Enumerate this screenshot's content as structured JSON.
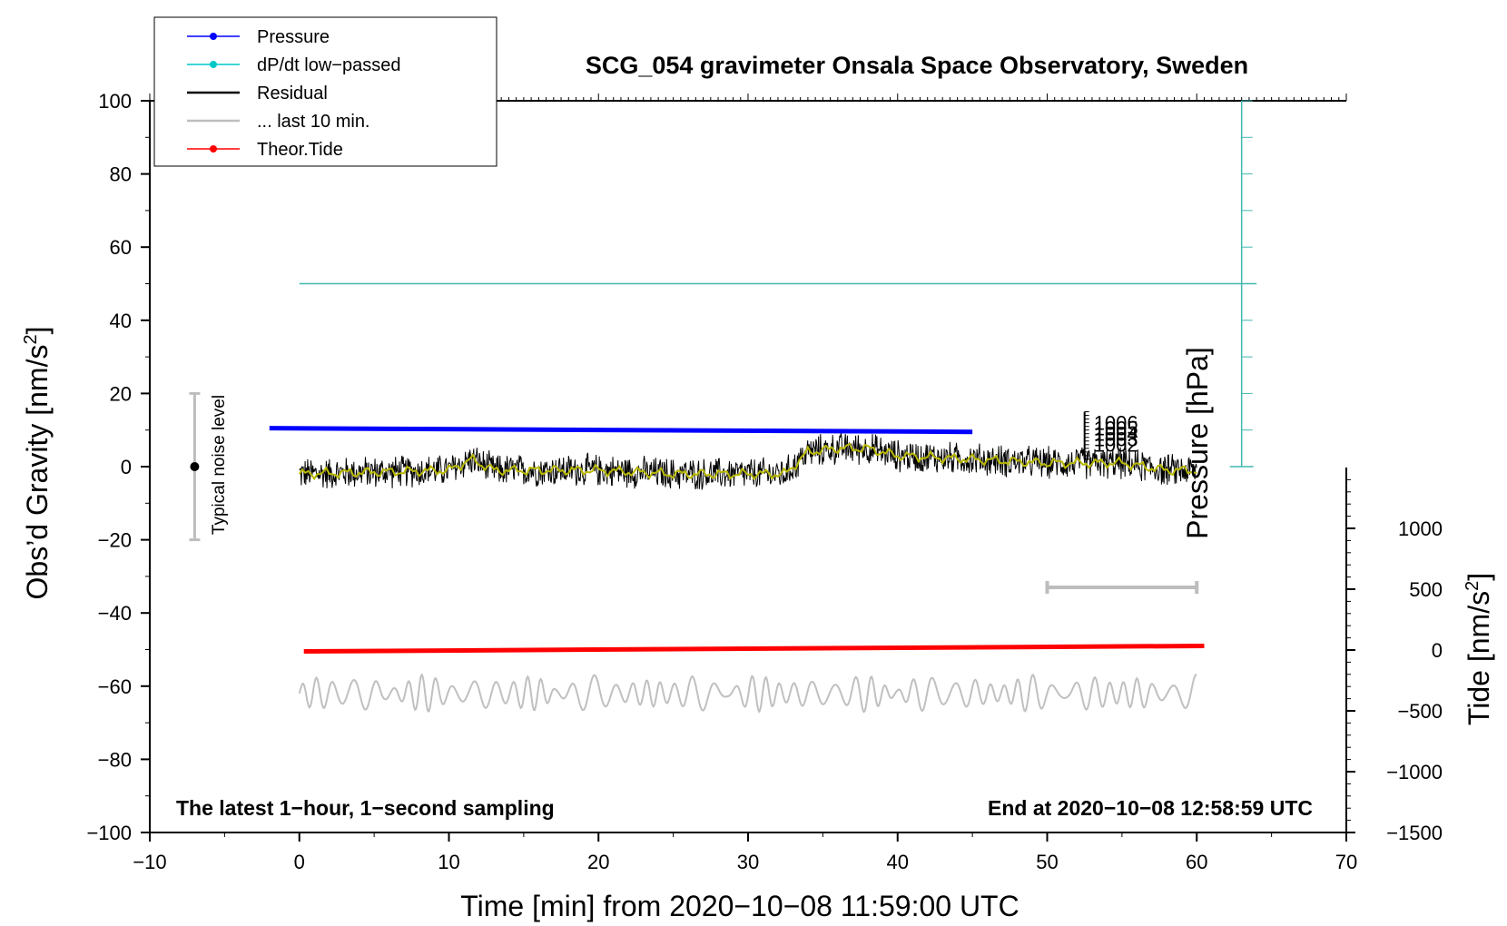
{
  "chart_data": {
    "type": "line",
    "title": "SCG_054 gravimeter Onsala Space Observatory, Sweden",
    "xlabel": "Time [min] from 2020−10−08 11:59:00 UTC",
    "ylabel": "Obs’d Gravity [nm/s",
    "ylabel_sup": "2",
    "ylabel_close": "]",
    "y2label": "Tide [nm/s",
    "y2label_sup": "2",
    "y2label_close": "]",
    "pressure_label": "Pressure [hPa]",
    "xlim": [
      -10,
      70
    ],
    "ylim": [
      -100,
      100
    ],
    "y2lim": [
      -1500,
      1500
    ],
    "x_ticks": [
      -10,
      0,
      10,
      20,
      30,
      40,
      50,
      60,
      70
    ],
    "x_tick_labels": [
      "−10",
      "0",
      "10",
      "20",
      "30",
      "40",
      "50",
      "60",
      "70"
    ],
    "y_ticks": [
      -100,
      -80,
      -60,
      -40,
      -20,
      0,
      20,
      40,
      60,
      80,
      100
    ],
    "y_tick_labels": [
      "−100",
      "−80",
      "−60",
      "−40",
      "−20",
      "0",
      "20",
      "40",
      "60",
      "80",
      "100"
    ],
    "y2_ticks": [
      -1500,
      -1000,
      -500,
      0,
      500,
      1000
    ],
    "y2_tick_labels": [
      "−1500",
      "−1000",
      "−500",
      "0",
      "500",
      "1000"
    ],
    "legend": {
      "position": "top-left",
      "entries": [
        {
          "label": "Pressure",
          "color": "#0000ff",
          "marker": true
        },
        {
          "label": "dP/dt low−passed",
          "color": "#00c8c8",
          "marker": true
        },
        {
          "label": "Residual",
          "color": "#000000",
          "marker": false
        },
        {
          "label": "... last 10 min.",
          "color": "#bdbdbd",
          "marker": false
        },
        {
          "label": "Theor.Tide",
          "color": "#ff0000",
          "marker": true
        }
      ]
    },
    "notes": {
      "left": "The latest 1−hour, 1−second sampling",
      "right": "End at 2020−10−08 12:58:59 UTC",
      "noise": "Typical noise level"
    },
    "noise_bar": {
      "x": -7,
      "low": -20,
      "high": 20,
      "center": 0
    },
    "pressure_overlapped_ticks": [
      "1006",
      "1005",
      "1004",
      "1003",
      "1002"
    ],
    "series": [
      {
        "name": "Pressure",
        "color": "#0000ff",
        "x_start": -2,
        "x_end": 45,
        "y_start": 10.5,
        "y_end": 9.5
      },
      {
        "name": "Theor.Tide",
        "color": "#ff0000",
        "x_start": 0.3,
        "x_end": 60.5,
        "y_start": -50.5,
        "y_end": -49
      },
      {
        "name": "dP/dt low−passed",
        "color": "#40b8b0",
        "x_start": 0,
        "x_end": 64,
        "y": 50,
        "vertical_x": 63,
        "vertical_top": 100,
        "vertical_bottom": 0
      },
      {
        "name": "Residual",
        "color": "#000000",
        "smooth_color": "#b8b800",
        "x_start": 0,
        "x_end": 60,
        "baseline": [
          [
            0,
            -2
          ],
          [
            10,
            -1
          ],
          [
            11.5,
            2
          ],
          [
            13,
            -1
          ],
          [
            20,
            -1
          ],
          [
            25,
            -2
          ],
          [
            30,
            -2
          ],
          [
            32.5,
            -2
          ],
          [
            34,
            4
          ],
          [
            36,
            5
          ],
          [
            38,
            5
          ],
          [
            40,
            3
          ],
          [
            45,
            2
          ],
          [
            50,
            1
          ],
          [
            55,
            1
          ],
          [
            58,
            -1
          ],
          [
            60,
            -1
          ]
        ],
        "noise_amplitude": 5
      },
      {
        "name": "... last 10 min.",
        "color": "#c0c0c0",
        "x_start": 0,
        "x_end": 60,
        "center": -62,
        "amplitude": 4,
        "bar": {
          "x_start": 50,
          "x_end": 60,
          "y": -33
        }
      }
    ]
  }
}
